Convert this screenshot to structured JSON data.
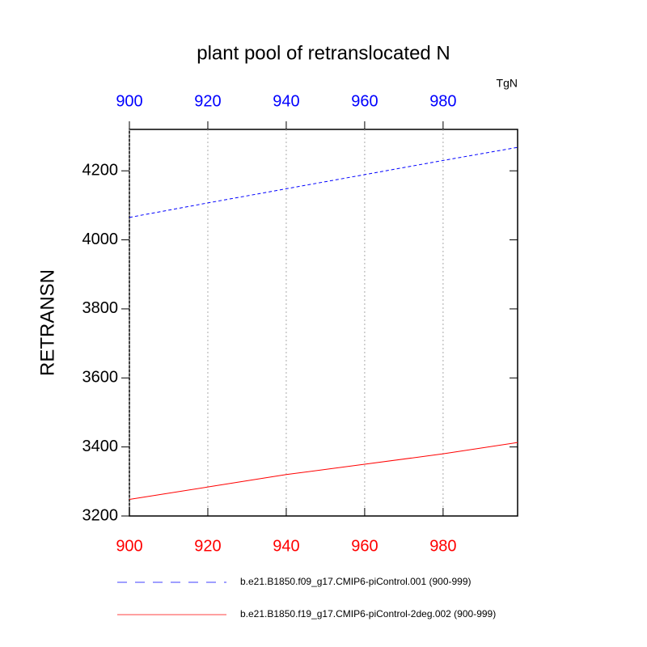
{
  "chart_data": {
    "type": "line",
    "title": "plant pool of retranslocated N",
    "units": "TgN",
    "y_label": "RETRANSN",
    "x": [
      900,
      920,
      940,
      960,
      980,
      999
    ],
    "series": [
      {
        "name": "b.e21.B1850.f09_g17.CMIP6-piControl.001 (900-999)",
        "color": "#0000ff",
        "dash": true,
        "values": [
          4065,
          4107,
          4148,
          4189,
          4230,
          4268
        ]
      },
      {
        "name": "b.e21.B1850.f19_g17.CMIP6-piControl-2deg.002 (900-999)",
        "color": "#ff0000",
        "dash": false,
        "values": [
          3248,
          3284,
          3320,
          3350,
          3380,
          3413
        ]
      }
    ],
    "xlim": [
      900,
      999
    ],
    "xticks": [
      900,
      920,
      940,
      960,
      980
    ],
    "ylim": [
      3200,
      4320
    ],
    "yticks": [
      3200,
      3400,
      3600,
      3800,
      4000,
      4200
    ],
    "grid": true
  }
}
